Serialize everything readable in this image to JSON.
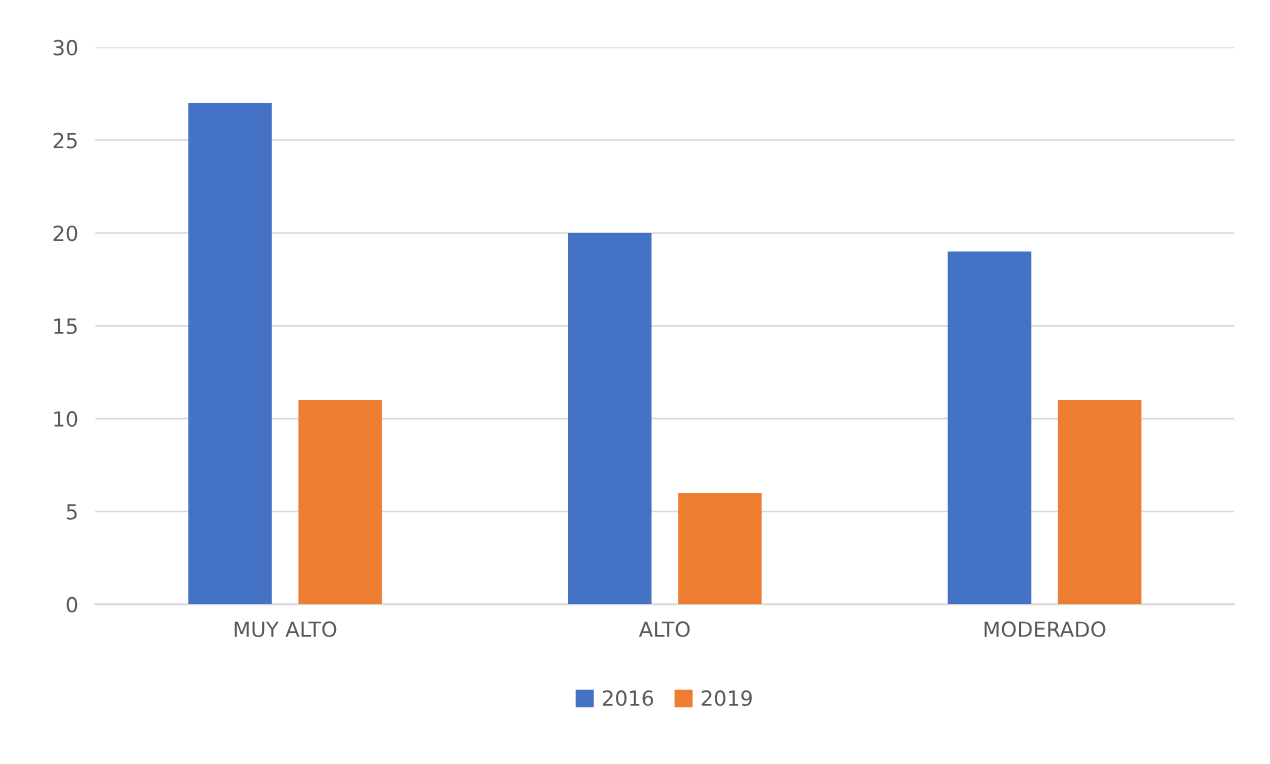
{
  "chart_data": {
    "type": "bar",
    "categories": [
      "MUY ALTO",
      "ALTO",
      "MODERADO"
    ],
    "series": [
      {
        "name": "2016",
        "color": "#4472c4",
        "values": [
          27,
          20,
          19
        ]
      },
      {
        "name": "2019",
        "color": "#ed7d31",
        "values": [
          11,
          6,
          11
        ]
      }
    ],
    "ylim": [
      0,
      30
    ],
    "yticks": [
      0,
      5,
      10,
      15,
      20,
      25,
      30
    ],
    "grid": "y",
    "legend": "bottom"
  }
}
